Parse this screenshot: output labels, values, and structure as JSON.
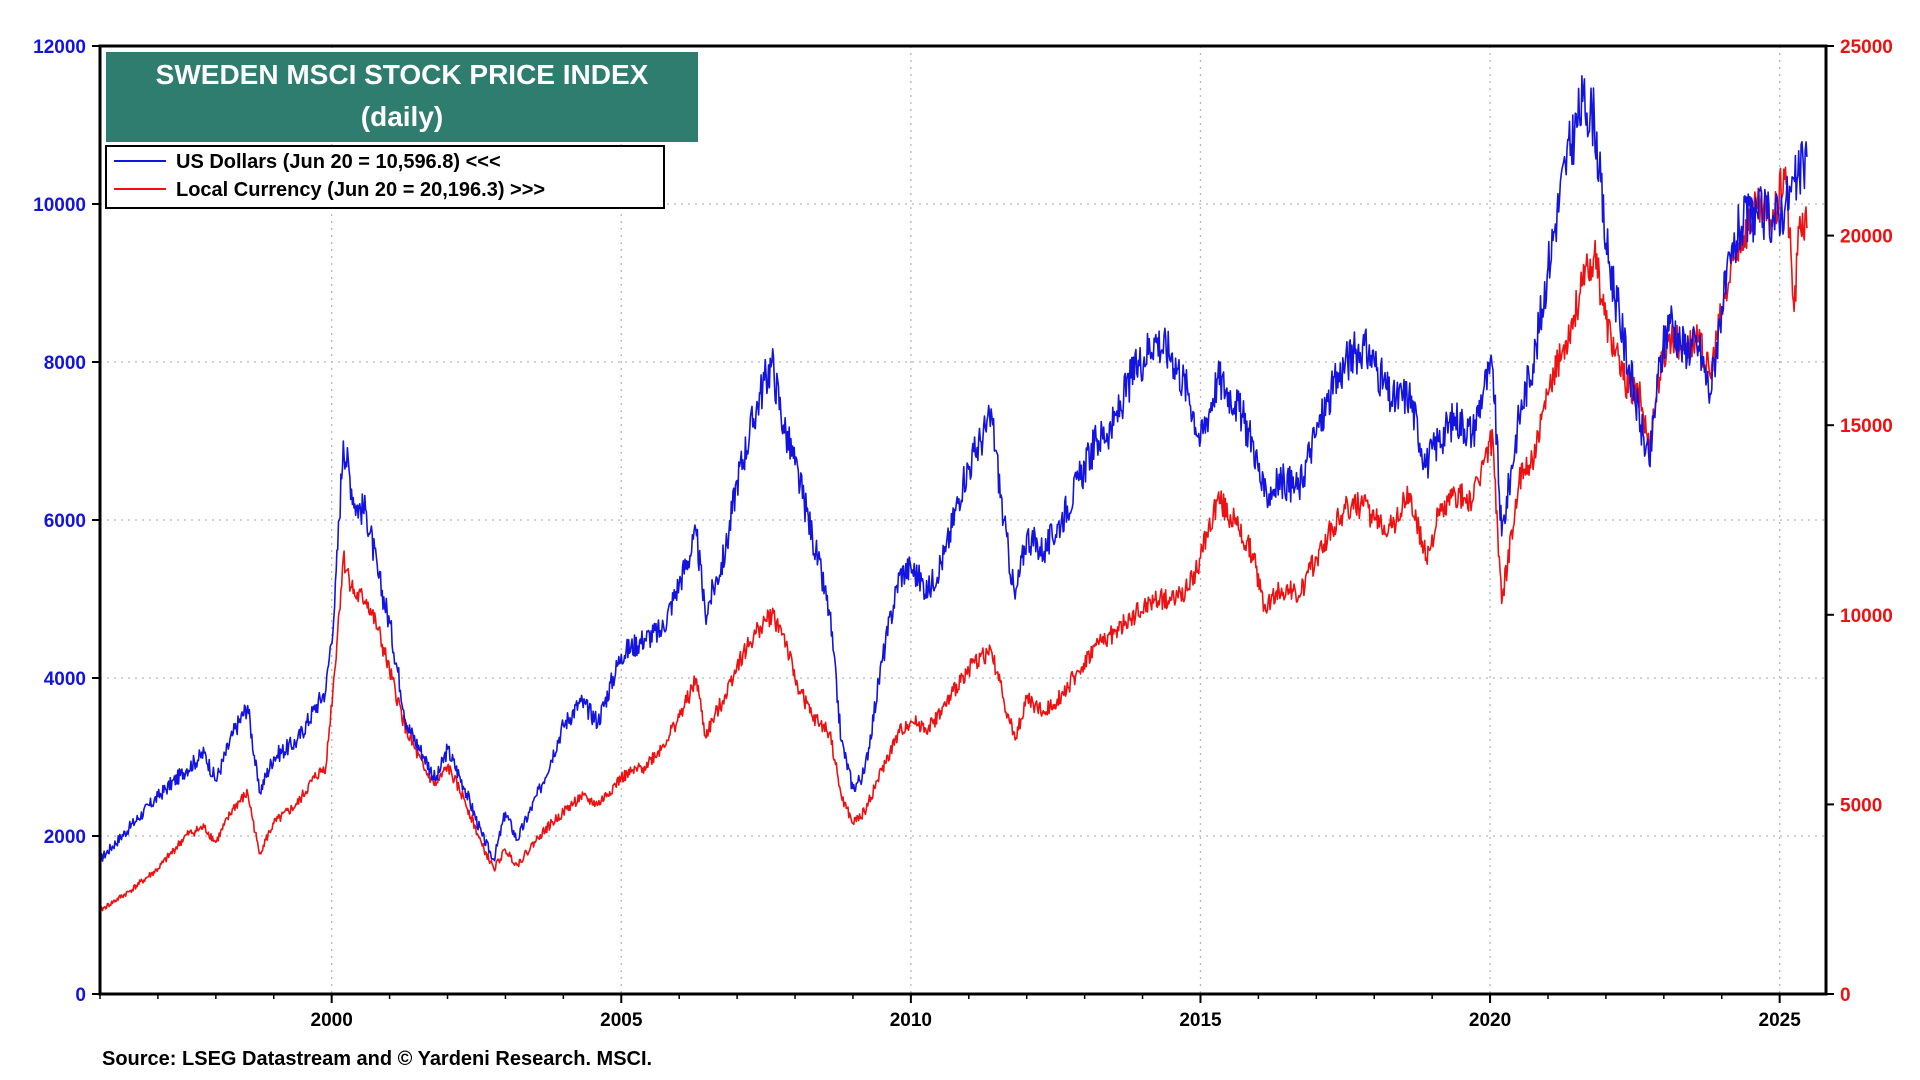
{
  "chart_data": {
    "type": "line",
    "title": "SWEDEN MSCI STOCK PRICE INDEX",
    "subtitle": "(daily)",
    "source": "Source: LSEG Datastream and © Yardeni Research. MSCI.",
    "x_ticks": [
      "2000",
      "2005",
      "2010",
      "2015",
      "2020",
      "2025"
    ],
    "xlim": [
      1996.0,
      2025.8
    ],
    "y_left_ticks": [
      "0",
      "2000",
      "4000",
      "6000",
      "8000",
      "10000",
      "12000"
    ],
    "ylim_left": [
      0,
      12000
    ],
    "y_right_ticks": [
      "0",
      "5000",
      "10000",
      "15000",
      "20000",
      "25000"
    ],
    "ylim_right": [
      0,
      25000
    ],
    "grid": true,
    "legend_position": "top-left",
    "colors": {
      "usd": "#1414e0",
      "local": "#ee1111",
      "title_bg": "#2e7d6e"
    },
    "series": [
      {
        "name": "US Dollars (Jun 20 = 10,596.8) <<<",
        "axis": "left",
        "points": [
          [
            1996.0,
            1700
          ],
          [
            1996.5,
            2100
          ],
          [
            1997.0,
            2500
          ],
          [
            1997.5,
            2850
          ],
          [
            1997.8,
            3050
          ],
          [
            1998.0,
            2700
          ],
          [
            1998.3,
            3300
          ],
          [
            1998.55,
            3650
          ],
          [
            1998.75,
            2550
          ],
          [
            1999.0,
            3000
          ],
          [
            1999.4,
            3200
          ],
          [
            1999.7,
            3600
          ],
          [
            1999.9,
            3850
          ],
          [
            2000.05,
            4900
          ],
          [
            2000.2,
            7000
          ],
          [
            2000.4,
            6200
          ],
          [
            2000.6,
            6100
          ],
          [
            2000.8,
            5300
          ],
          [
            2001.0,
            4700
          ],
          [
            2001.3,
            3400
          ],
          [
            2001.6,
            3000
          ],
          [
            2001.8,
            2700
          ],
          [
            2002.0,
            3100
          ],
          [
            2002.3,
            2600
          ],
          [
            2002.6,
            2000
          ],
          [
            2002.8,
            1700
          ],
          [
            2003.0,
            2300
          ],
          [
            2003.2,
            1950
          ],
          [
            2003.6,
            2600
          ],
          [
            2004.0,
            3400
          ],
          [
            2004.3,
            3700
          ],
          [
            2004.6,
            3450
          ],
          [
            2005.0,
            4300
          ],
          [
            2005.4,
            4500
          ],
          [
            2005.7,
            4600
          ],
          [
            2006.0,
            5200
          ],
          [
            2006.3,
            5800
          ],
          [
            2006.45,
            4800
          ],
          [
            2006.8,
            5600
          ],
          [
            2007.0,
            6500
          ],
          [
            2007.4,
            7600
          ],
          [
            2007.6,
            8000
          ],
          [
            2007.8,
            7200
          ],
          [
            2008.0,
            6700
          ],
          [
            2008.3,
            5800
          ],
          [
            2008.6,
            4800
          ],
          [
            2008.8,
            3200
          ],
          [
            2009.0,
            2600
          ],
          [
            2009.2,
            2800
          ],
          [
            2009.5,
            4200
          ],
          [
            2009.8,
            5300
          ],
          [
            2010.0,
            5400
          ],
          [
            2010.3,
            5100
          ],
          [
            2010.6,
            5600
          ],
          [
            2010.9,
            6500
          ],
          [
            2011.2,
            7000
          ],
          [
            2011.4,
            7300
          ],
          [
            2011.6,
            6000
          ],
          [
            2011.8,
            5000
          ],
          [
            2012.0,
            5800
          ],
          [
            2012.3,
            5600
          ],
          [
            2012.6,
            6000
          ],
          [
            2012.9,
            6500
          ],
          [
            2013.2,
            7000
          ],
          [
            2013.5,
            7200
          ],
          [
            2013.8,
            7800
          ],
          [
            2014.2,
            8300
          ],
          [
            2014.5,
            8100
          ],
          [
            2014.8,
            7600
          ],
          [
            2015.0,
            7000
          ],
          [
            2015.3,
            7800
          ],
          [
            2015.6,
            7500
          ],
          [
            2015.9,
            7000
          ],
          [
            2016.1,
            6300
          ],
          [
            2016.4,
            6500
          ],
          [
            2016.7,
            6400
          ],
          [
            2016.9,
            6900
          ],
          [
            2017.2,
            7500
          ],
          [
            2017.5,
            8000
          ],
          [
            2017.8,
            8200
          ],
          [
            2018.0,
            8000
          ],
          [
            2018.3,
            7500
          ],
          [
            2018.6,
            7600
          ],
          [
            2018.9,
            6700
          ],
          [
            2019.1,
            7000
          ],
          [
            2019.4,
            7300
          ],
          [
            2019.7,
            7100
          ],
          [
            2019.9,
            7700
          ],
          [
            2020.05,
            7900
          ],
          [
            2020.2,
            5800
          ],
          [
            2020.5,
            7300
          ],
          [
            2020.8,
            8200
          ],
          [
            2021.0,
            9200
          ],
          [
            2021.3,
            10500
          ],
          [
            2021.6,
            11300
          ],
          [
            2021.8,
            11100
          ],
          [
            2022.0,
            9500
          ],
          [
            2022.3,
            8300
          ],
          [
            2022.6,
            7200
          ],
          [
            2022.75,
            6700
          ],
          [
            2022.9,
            7800
          ],
          [
            2023.1,
            8600
          ],
          [
            2023.3,
            8200
          ],
          [
            2023.6,
            8200
          ],
          [
            2023.8,
            7600
          ],
          [
            2024.0,
            8700
          ],
          [
            2024.3,
            9700
          ],
          [
            2024.6,
            9900
          ],
          [
            2024.9,
            9800
          ],
          [
            2025.1,
            10000
          ],
          [
            2025.3,
            10300
          ],
          [
            2025.47,
            10596.8
          ]
        ]
      },
      {
        "name": "Local Currency (Jun 20 = 20,196.3) >>>",
        "axis": "right",
        "points": [
          [
            1996.0,
            2200
          ],
          [
            1996.5,
            2700
          ],
          [
            1997.0,
            3300
          ],
          [
            1997.5,
            4200
          ],
          [
            1997.8,
            4400
          ],
          [
            1998.0,
            4000
          ],
          [
            1998.3,
            4900
          ],
          [
            1998.55,
            5300
          ],
          [
            1998.75,
            3700
          ],
          [
            1999.0,
            4500
          ],
          [
            1999.4,
            5000
          ],
          [
            1999.7,
            5700
          ],
          [
            1999.9,
            6000
          ],
          [
            2000.05,
            8500
          ],
          [
            2000.2,
            11500
          ],
          [
            2000.4,
            10500
          ],
          [
            2000.6,
            10400
          ],
          [
            2000.8,
            9600
          ],
          [
            2001.0,
            8500
          ],
          [
            2001.3,
            6900
          ],
          [
            2001.6,
            5900
          ],
          [
            2001.8,
            5500
          ],
          [
            2002.0,
            6000
          ],
          [
            2002.3,
            5100
          ],
          [
            2002.6,
            3900
          ],
          [
            2002.8,
            3300
          ],
          [
            2003.0,
            3800
          ],
          [
            2003.2,
            3400
          ],
          [
            2003.6,
            4200
          ],
          [
            2004.0,
            4800
          ],
          [
            2004.3,
            5200
          ],
          [
            2004.6,
            5000
          ],
          [
            2005.0,
            5700
          ],
          [
            2005.4,
            6000
          ],
          [
            2005.7,
            6500
          ],
          [
            2006.0,
            7300
          ],
          [
            2006.3,
            8300
          ],
          [
            2006.45,
            6800
          ],
          [
            2006.8,
            7900
          ],
          [
            2007.0,
            8700
          ],
          [
            2007.4,
            9700
          ],
          [
            2007.6,
            10000
          ],
          [
            2007.8,
            9500
          ],
          [
            2008.0,
            8300
          ],
          [
            2008.3,
            7300
          ],
          [
            2008.6,
            6900
          ],
          [
            2008.8,
            5200
          ],
          [
            2009.0,
            4500
          ],
          [
            2009.2,
            4800
          ],
          [
            2009.5,
            5900
          ],
          [
            2009.8,
            6900
          ],
          [
            2010.0,
            7200
          ],
          [
            2010.3,
            7000
          ],
          [
            2010.6,
            7600
          ],
          [
            2010.9,
            8400
          ],
          [
            2011.2,
            8900
          ],
          [
            2011.4,
            9000
          ],
          [
            2011.6,
            7800
          ],
          [
            2011.8,
            6700
          ],
          [
            2012.0,
            7800
          ],
          [
            2012.3,
            7400
          ],
          [
            2012.6,
            7900
          ],
          [
            2012.9,
            8500
          ],
          [
            2013.2,
            9200
          ],
          [
            2013.5,
            9500
          ],
          [
            2013.8,
            9900
          ],
          [
            2014.2,
            10400
          ],
          [
            2014.5,
            10400
          ],
          [
            2014.8,
            10700
          ],
          [
            2015.0,
            11500
          ],
          [
            2015.3,
            13100
          ],
          [
            2015.6,
            12400
          ],
          [
            2015.9,
            11600
          ],
          [
            2016.1,
            10200
          ],
          [
            2016.4,
            10700
          ],
          [
            2016.7,
            10500
          ],
          [
            2016.9,
            11200
          ],
          [
            2017.2,
            12100
          ],
          [
            2017.5,
            12800
          ],
          [
            2017.8,
            12900
          ],
          [
            2018.0,
            12500
          ],
          [
            2018.3,
            12300
          ],
          [
            2018.6,
            13200
          ],
          [
            2018.9,
            11500
          ],
          [
            2019.1,
            12600
          ],
          [
            2019.4,
            13200
          ],
          [
            2019.7,
            13000
          ],
          [
            2019.9,
            14100
          ],
          [
            2020.05,
            14600
          ],
          [
            2020.2,
            10300
          ],
          [
            2020.5,
            13500
          ],
          [
            2020.8,
            14400
          ],
          [
            2021.0,
            15800
          ],
          [
            2021.3,
            17200
          ],
          [
            2021.6,
            18700
          ],
          [
            2021.8,
            19500
          ],
          [
            2022.0,
            17800
          ],
          [
            2022.3,
            16200
          ],
          [
            2022.6,
            15700
          ],
          [
            2022.75,
            14400
          ],
          [
            2022.9,
            16200
          ],
          [
            2023.1,
            17400
          ],
          [
            2023.3,
            17100
          ],
          [
            2023.6,
            17200
          ],
          [
            2023.8,
            16300
          ],
          [
            2024.0,
            18000
          ],
          [
            2024.3,
            19800
          ],
          [
            2024.6,
            20700
          ],
          [
            2024.9,
            20400
          ],
          [
            2025.1,
            21800
          ],
          [
            2025.25,
            18000
          ],
          [
            2025.35,
            20500
          ],
          [
            2025.47,
            20196.3
          ]
        ]
      }
    ]
  }
}
